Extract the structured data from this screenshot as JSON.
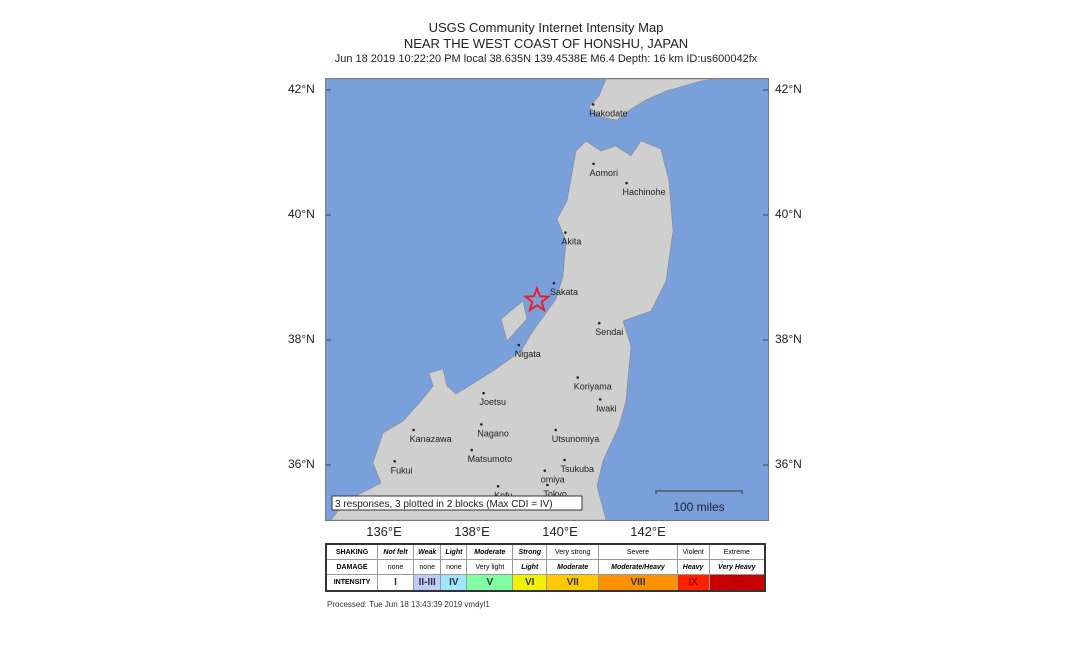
{
  "title": "USGS Community Internet Intensity Map",
  "region": "NEAR THE WEST COAST OF HONSHU, JAPAN",
  "event": "Jun 18 2019 10:22:20 PM local 38.635N 139.4538E M6.4 Depth: 16 km ID:us600042fx",
  "epicenter": {
    "lat": 38.635,
    "lon": 139.4538,
    "icon": "star-icon",
    "color": "#e8202a"
  },
  "lat_ticks": [
    "42°N",
    "40°N",
    "38°N",
    "36°N"
  ],
  "lon_ticks": [
    "136°E",
    "138°E",
    "140°E",
    "142°E"
  ],
  "colors": {
    "water": "#7aa0dc",
    "land": "#cfcfcf"
  },
  "summary": "3 responses, 3 plotted in 2 blocks (Max CDI = IV)",
  "scale": "100 miles",
  "cities": [
    {
      "name": "Hakodate",
      "lat": 41.77,
      "lon": 140.73
    },
    {
      "name": "Aomori",
      "lat": 40.82,
      "lon": 140.74
    },
    {
      "name": "Hachinohe",
      "lat": 40.51,
      "lon": 141.49
    },
    {
      "name": "Akita",
      "lat": 39.72,
      "lon": 140.1
    },
    {
      "name": "Sakata",
      "lat": 38.91,
      "lon": 139.84
    },
    {
      "name": "Sendai",
      "lat": 38.27,
      "lon": 140.87
    },
    {
      "name": "Nigata",
      "lat": 37.92,
      "lon": 139.04
    },
    {
      "name": "Koriyama",
      "lat": 37.4,
      "lon": 140.38
    },
    {
      "name": "Iwaki",
      "lat": 37.05,
      "lon": 140.89
    },
    {
      "name": "Joetsu",
      "lat": 37.15,
      "lon": 138.24
    },
    {
      "name": "Nagano",
      "lat": 36.65,
      "lon": 138.19
    },
    {
      "name": "Kanazawa",
      "lat": 36.56,
      "lon": 136.65
    },
    {
      "name": "Matsumoto",
      "lat": 36.24,
      "lon": 137.97
    },
    {
      "name": "Utsunomiya",
      "lat": 36.56,
      "lon": 139.88
    },
    {
      "name": "Tsukuba",
      "lat": 36.08,
      "lon": 140.08
    },
    {
      "name": "Fukui",
      "lat": 36.06,
      "lon": 136.22
    },
    {
      "name": "omiya",
      "lat": 35.91,
      "lon": 139.63
    },
    {
      "name": "Kofu",
      "lat": 35.66,
      "lon": 138.57
    },
    {
      "name": "Tokyo",
      "lat": 35.68,
      "lon": 139.69
    }
  ],
  "legend": {
    "shaking_label": "SHAKING",
    "damage_label": "DAMAGE",
    "intensity_label": "INTENSITY",
    "shaking": [
      "Not felt",
      "Weak",
      "Light",
      "Moderate",
      "Strong",
      "Very strong",
      "Severe",
      "Violent",
      "Extreme"
    ],
    "damage": [
      "none",
      "none",
      "none",
      "Very light",
      "Light",
      "Moderate",
      "Moderate/Heavy",
      "Heavy",
      "Very Heavy"
    ],
    "intensity": [
      "I",
      "II-III",
      "IV",
      "V",
      "VI",
      "VII",
      "VIII",
      "IX",
      "X+"
    ],
    "intensity_colors": [
      "#ffffff",
      "#bfccff",
      "#a0e6ff",
      "#80ffa0",
      "#f0f000",
      "#ffc800",
      "#ff9000",
      "#ff2000",
      "#c80000"
    ]
  },
  "processed": "Processed: Tue Jun 18 13:43:39 2019 vmdyl1"
}
